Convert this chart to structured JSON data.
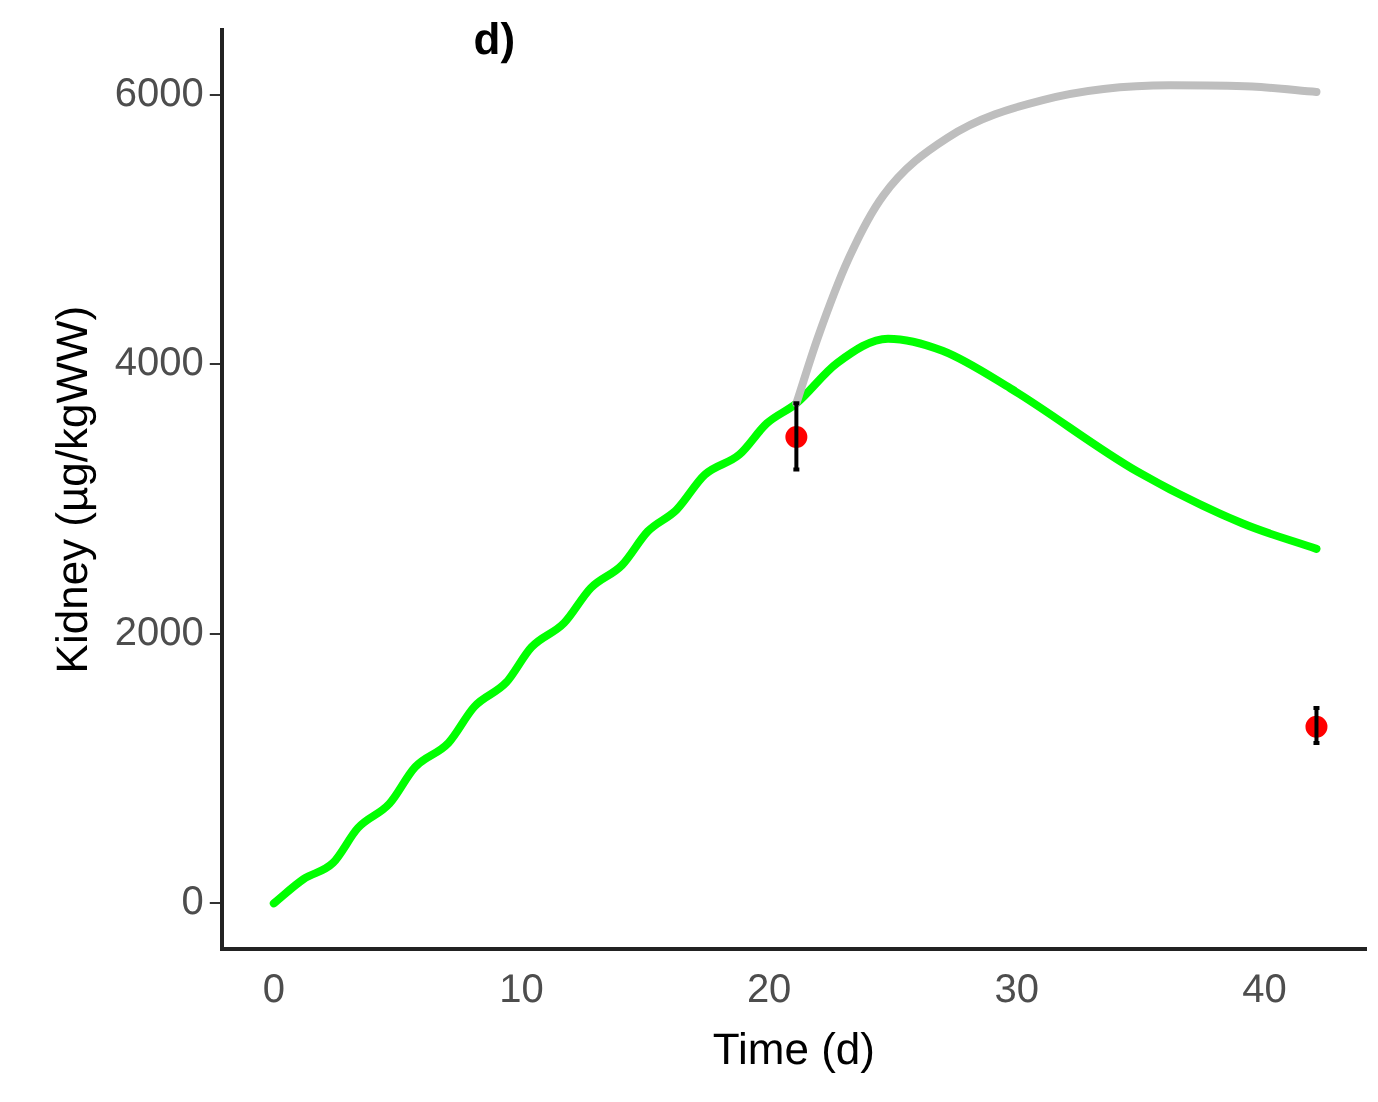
{
  "chart_data": {
    "type": "line",
    "title": "d)",
    "xlabel": "Time (d)",
    "ylabel": "Kidney (µg/kgWW)",
    "xlim": [
      -2.1,
      44.1
    ],
    "xticks": [
      0,
      10,
      20,
      30,
      40
    ],
    "ylim": [
      -340,
      6480
    ],
    "yticks": [
      0,
      2000,
      4000,
      6000
    ],
    "grid": false,
    "legend": false,
    "series": [
      {
        "type": "line",
        "color": "#bebebe",
        "x": [
          21.1,
          21.97,
          23.2,
          24.6,
          27.2,
          31.05,
          36.2,
          39.5,
          42.1
        ],
        "values": [
          3710,
          4200,
          4780,
          5250,
          5680,
          5960,
          6070,
          6060,
          6020
        ]
      },
      {
        "type": "line",
        "color": "#00ff00",
        "x": [
          0,
          1.2,
          2.39,
          3.4,
          4.67,
          5.7,
          7.05,
          8.1,
          9.39,
          10.4,
          11.72,
          12.8,
          14.06,
          15.1,
          16.26,
          17.4,
          18.8,
          19.9,
          21.1,
          22.75,
          24.8,
          27.0,
          29.75,
          34.9,
          39.1,
          42.1
        ],
        "values": [
          0,
          180,
          300,
          560,
          740,
          1010,
          1190,
          1460,
          1640,
          1900,
          2080,
          2340,
          2510,
          2760,
          2920,
          3180,
          3330,
          3560,
          3710,
          4010,
          4190,
          4100,
          3820,
          3200,
          2820,
          2630
        ]
      },
      {
        "type": "scatter",
        "color": "#ff0000",
        "marker": "circle",
        "x": [
          21.1,
          42.1
        ],
        "values": [
          3460,
          1310
        ],
        "errors": [
          [
            3220,
            3710
          ],
          [
            1190,
            1450
          ]
        ]
      }
    ]
  }
}
